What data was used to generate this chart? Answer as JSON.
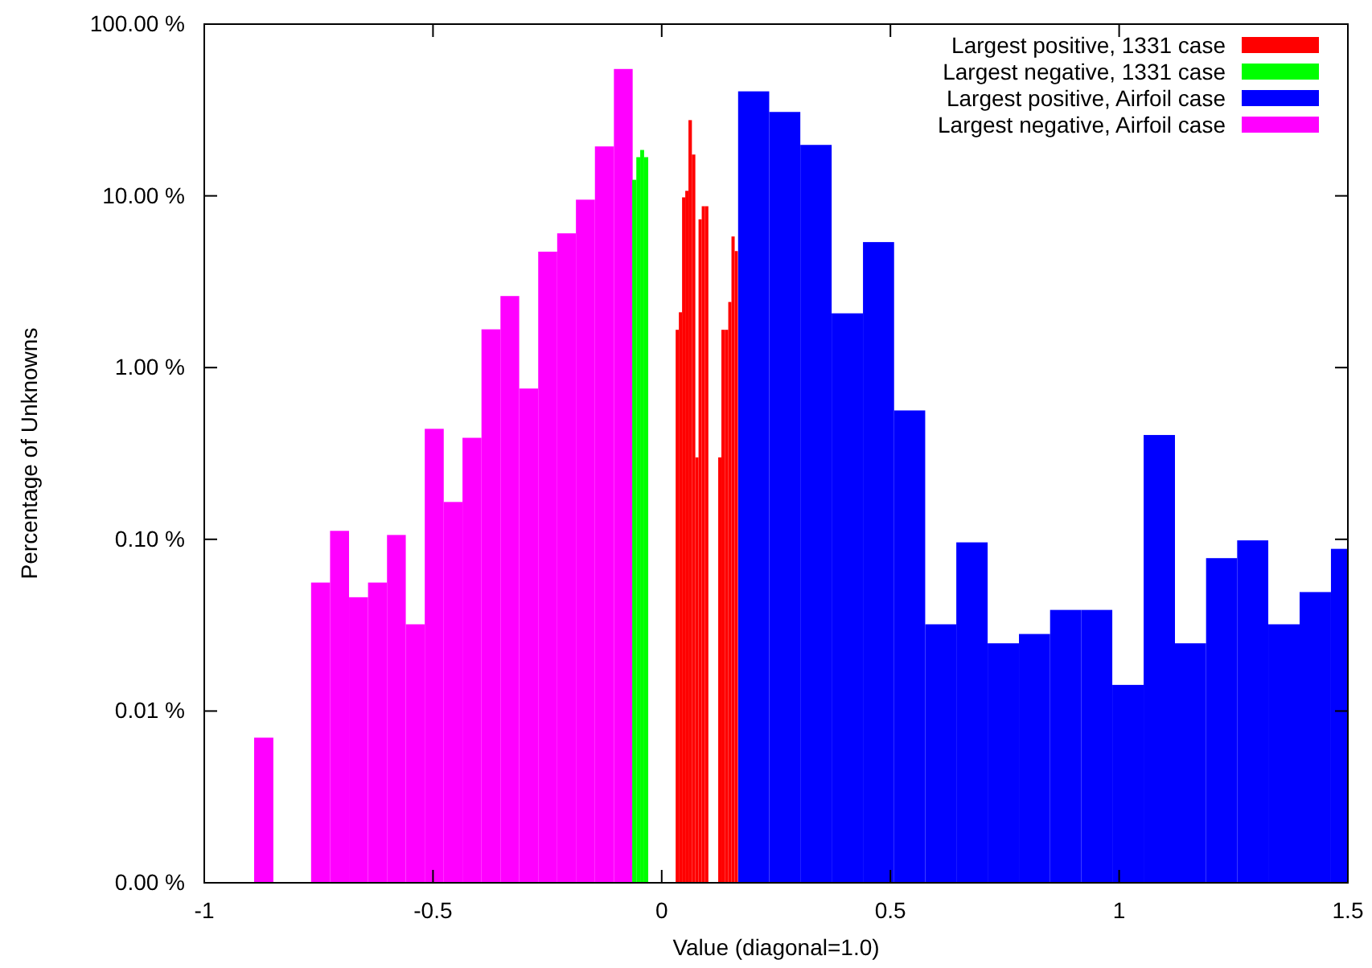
{
  "chart_data": {
    "type": "bar",
    "xlabel": "Value (diagonal=1.0)",
    "ylabel": "Percentage of Unknowns",
    "log": "y",
    "grid": false,
    "legend": "top right",
    "xlim": [
      -1,
      1.5
    ],
    "xticks": [
      -1,
      -0.5,
      0,
      0.5,
      1,
      1.5
    ],
    "ylim": [
      0.001,
      100
    ],
    "yticks": [
      {
        "value": 0.001,
        "label": "0.00 %"
      },
      {
        "value": 0.01,
        "label": "0.01 %"
      },
      {
        "value": 0.1,
        "label": "0.10 %"
      },
      {
        "value": 1,
        "label": "1.00 %"
      },
      {
        "value": 10,
        "label": "10.00 %"
      },
      {
        "value": 100,
        "label": "100.00 %"
      }
    ],
    "series": [
      {
        "name": "Largest positive, 1331 case",
        "color": "#ff0000",
        "x": [
          0.034,
          0.041,
          0.048,
          0.055,
          0.062,
          0.07,
          0.077,
          0.084,
          0.091,
          0.098,
          0.106,
          0.113,
          0.12,
          0.127,
          0.134,
          0.142,
          0.149,
          0.156,
          0.163
        ],
        "values": [
          1.66,
          2.1,
          9.8,
          10.7,
          27.6,
          17.4,
          0.3,
          7.3,
          8.7,
          8.7,
          null,
          null,
          null,
          0.3,
          1.66,
          1.66,
          2.41,
          5.8,
          4.77
        ]
      },
      {
        "name": "Largest negative, 1331 case",
        "color": "#00ff00",
        "x": [
          -0.06,
          -0.051,
          -0.043,
          -0.034
        ],
        "values": [
          12.4,
          16.8,
          18.5,
          16.8
        ]
      },
      {
        "name": "Largest positive, Airfoil case",
        "color": "#0000ff",
        "x": [
          0.201,
          0.269,
          0.337,
          0.406,
          0.474,
          0.542,
          0.61,
          0.678,
          0.747,
          0.815,
          0.883,
          0.951,
          1.019,
          1.088,
          1.156,
          1.224,
          1.292,
          1.36,
          1.429,
          1.497
        ],
        "values": [
          40.6,
          30.8,
          19.8,
          2.07,
          5.38,
          0.563,
          0.032,
          0.096,
          0.0248,
          0.0281,
          0.0388,
          0.0388,
          0.0142,
          0.405,
          0.0248,
          0.0777,
          0.0986,
          0.032,
          0.0493,
          0.088
        ]
      },
      {
        "name": "Largest negative, Airfoil case",
        "color": "#ff00ff",
        "x": [
          -0.87,
          -0.828,
          -0.787,
          -0.746,
          -0.704,
          -0.663,
          -0.621,
          -0.58,
          -0.539,
          -0.497,
          -0.456,
          -0.415,
          -0.373,
          -0.332,
          -0.291,
          -0.249,
          -0.208,
          -0.167,
          -0.125,
          -0.084
        ],
        "values": [
          0.007,
          null,
          null,
          0.056,
          0.112,
          0.046,
          0.056,
          0.106,
          0.032,
          0.44,
          0.165,
          0.39,
          1.67,
          2.61,
          0.755,
          4.73,
          6.05,
          9.5,
          19.4,
          54.8
        ]
      }
    ]
  }
}
